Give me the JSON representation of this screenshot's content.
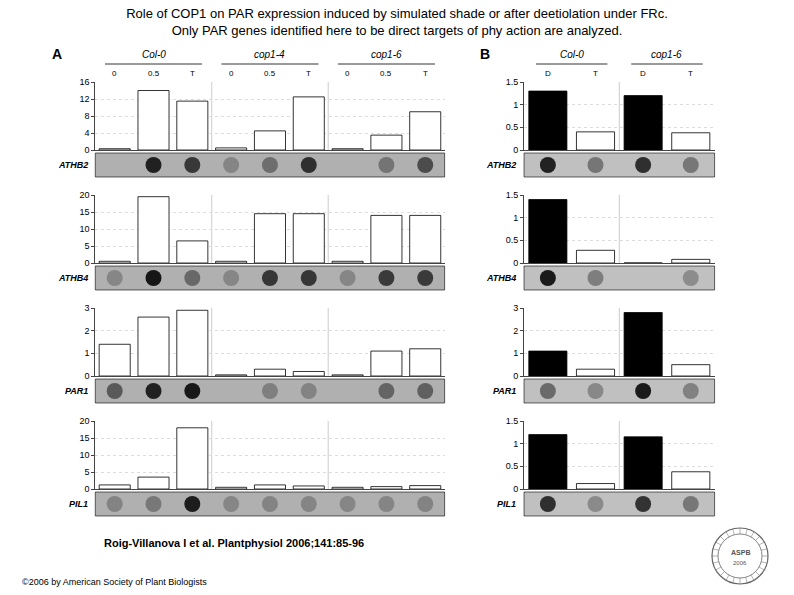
{
  "title": "Role of COP1 on PAR expression induced by simulated shade or after deetiolation under FRc.",
  "subtitle": "Only PAR genes identified here to be direct targets of phy action are analyzed.",
  "annotations": [
    "Roig-Villanova I et al. Plantphysiol 2006;141:85-96",
    "©2006 by American Society of Plant Biologists",
    "ASPB",
    "2006"
  ],
  "chart_data": [
    {
      "type": "bar",
      "title": "A",
      "annotations": [
        "Col-0",
        "cop1-4",
        "cop1-6"
      ],
      "categories": [
        "0",
        "0.5",
        "T",
        "0",
        "0.5",
        "T",
        "0",
        "0.5",
        "T"
      ],
      "grid": true,
      "series": [
        {
          "name": "ATHB2",
          "color": "white",
          "values": [
            0.3,
            14.0,
            11.5,
            0.5,
            4.5,
            12.5,
            0.3,
            3.5,
            9.0
          ],
          "ylim": [
            0,
            16
          ],
          "yticks": [
            0,
            4,
            8,
            12,
            16
          ]
        },
        {
          "name": "ATHB4",
          "color": "white",
          "values": [
            0.5,
            19.5,
            6.5,
            0.5,
            14.5,
            14.5,
            0.5,
            14.0,
            14.0
          ],
          "ylim": [
            0,
            20
          ],
          "yticks": [
            0,
            5,
            10,
            15,
            20
          ]
        },
        {
          "name": "PAR1",
          "color": "white",
          "values": [
            1.4,
            2.6,
            2.9,
            0.05,
            0.3,
            0.2,
            0.05,
            1.1,
            1.2
          ],
          "ylim": [
            0,
            3
          ],
          "yticks": [
            0,
            1,
            2,
            3
          ]
        },
        {
          "name": "PIL1",
          "color": "white",
          "values": [
            1.2,
            3.5,
            18.0,
            0.5,
            1.2,
            0.9,
            0.5,
            0.7,
            1.0
          ],
          "ylim": [
            0,
            20
          ],
          "yticks": [
            0,
            5,
            10,
            15,
            20
          ]
        }
      ]
    },
    {
      "type": "bar",
      "title": "B",
      "annotations": [
        "Col-0",
        "cop1-6"
      ],
      "categories": [
        "D",
        "T",
        "D",
        "T"
      ],
      "grid": true,
      "series": [
        {
          "name": "ATHB2",
          "colors": [
            "black",
            "white",
            "black",
            "white"
          ],
          "values": [
            1.3,
            0.4,
            1.2,
            0.38
          ],
          "ylim": [
            0,
            1.5
          ],
          "yticks": [
            0,
            0.5,
            1,
            1.5
          ]
        },
        {
          "name": "ATHB4",
          "colors": [
            "black",
            "white",
            "black",
            "white"
          ],
          "values": [
            1.4,
            0.28,
            0.0,
            0.08
          ],
          "ylim": [
            0,
            1.5
          ],
          "yticks": [
            0,
            0.5,
            1,
            1.5
          ]
        },
        {
          "name": "PAR1",
          "colors": [
            "black",
            "white",
            "black",
            "white"
          ],
          "values": [
            1.1,
            0.3,
            2.8,
            0.5
          ],
          "ylim": [
            0,
            3
          ],
          "yticks": [
            0,
            1,
            2,
            3
          ]
        },
        {
          "name": "PIL1",
          "colors": [
            "black",
            "white",
            "black",
            "white"
          ],
          "values": [
            1.2,
            0.12,
            1.15,
            0.38
          ],
          "ylim": [
            0,
            1.5
          ],
          "yticks": [
            0,
            0.5,
            1,
            1.5
          ]
        }
      ]
    }
  ]
}
